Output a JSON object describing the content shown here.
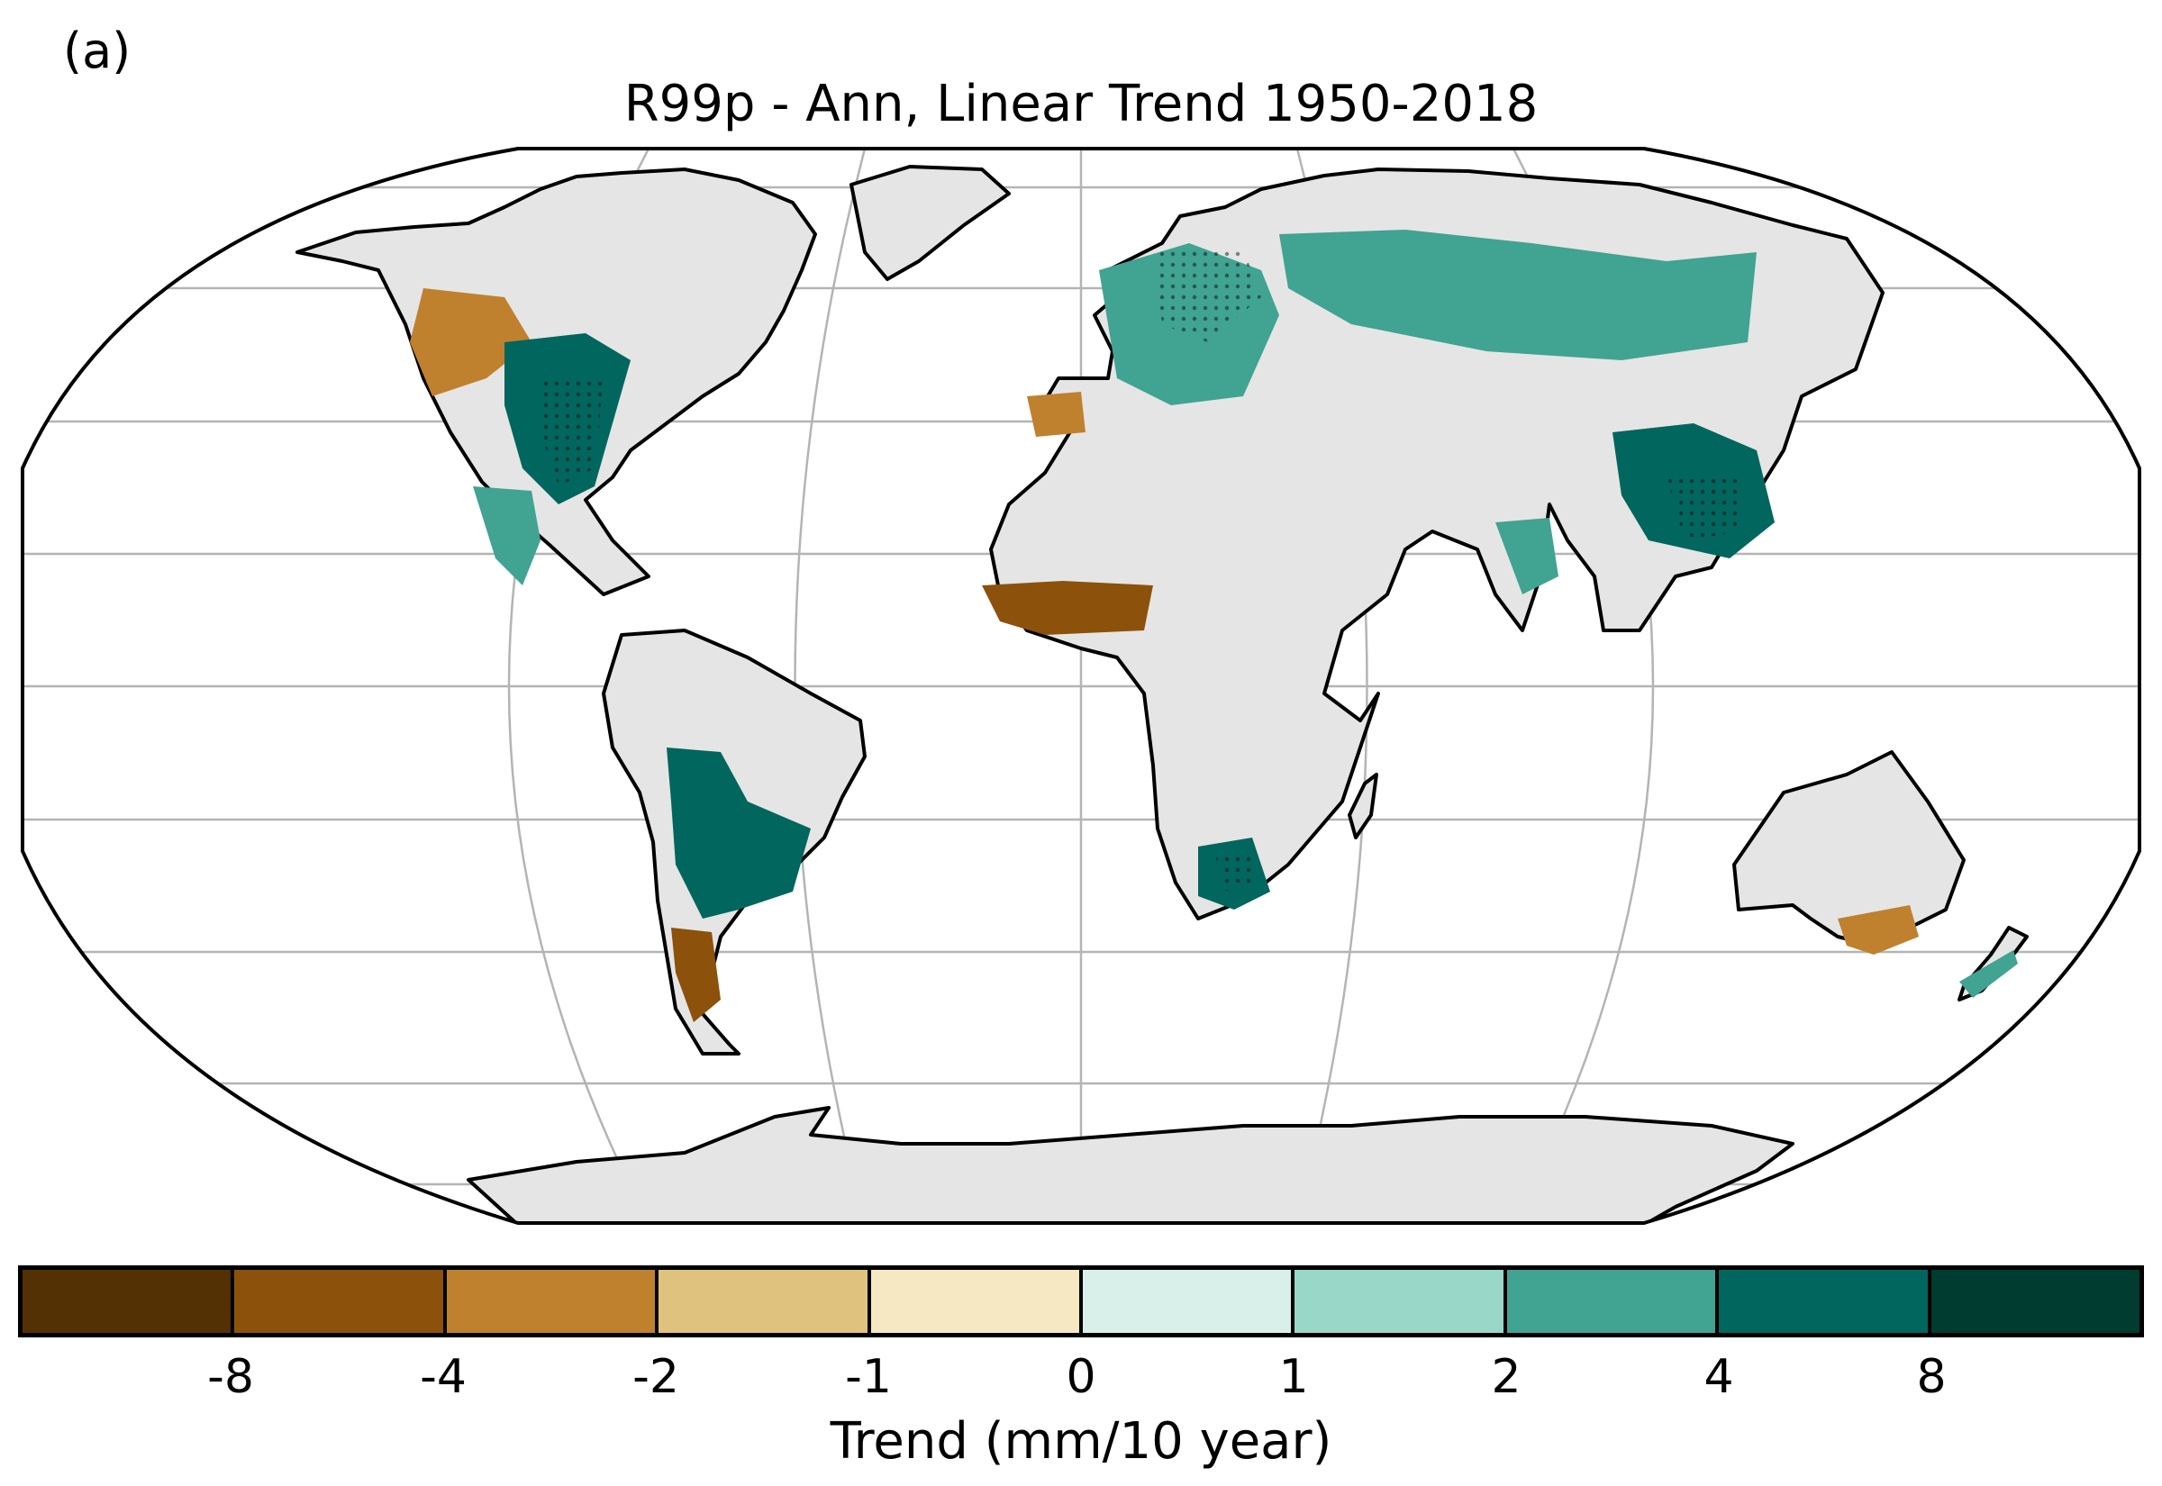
{
  "figure": {
    "panel_label": "(a)",
    "title": "R99p - Ann, Linear Trend 1950-2018"
  },
  "map": {
    "projection": "Robinson",
    "ocean_color": "#ffffff",
    "land_color": "#e5e5e5",
    "grid_color": "#b4b4b4",
    "coast_color": "#000000"
  },
  "colorbar": {
    "label": "Trend (mm/10 year)",
    "colors": [
      "#543005",
      "#8c510a",
      "#bf812d",
      "#dfc27d",
      "#f6e8c3",
      "#d8efea",
      "#99d8c9",
      "#41a391",
      "#01665e",
      "#003c30"
    ],
    "ticks": [
      "-8",
      "-4",
      "-2",
      "-1",
      "0",
      "1",
      "2",
      "4",
      "8"
    ]
  },
  "regions": [
    {
      "name": "western-north-america",
      "trend_class": 2
    },
    {
      "name": "eastern-united-states",
      "trend_class": 8
    },
    {
      "name": "mexico",
      "trend_class": 7
    },
    {
      "name": "west-africa",
      "trend_class": 1
    },
    {
      "name": "southern-africa",
      "trend_class": 8
    },
    {
      "name": "europe",
      "trend_class": 7
    },
    {
      "name": "iberia",
      "trend_class": 2
    },
    {
      "name": "russia",
      "trend_class": 7
    },
    {
      "name": "eastern-china",
      "trend_class": 8
    },
    {
      "name": "india",
      "trend_class": 7
    },
    {
      "name": "south-america",
      "trend_class": 8
    },
    {
      "name": "patagonia",
      "trend_class": 1
    },
    {
      "name": "southeast-australia",
      "trend_class": 2
    },
    {
      "name": "new-zealand",
      "trend_class": 7
    }
  ]
}
